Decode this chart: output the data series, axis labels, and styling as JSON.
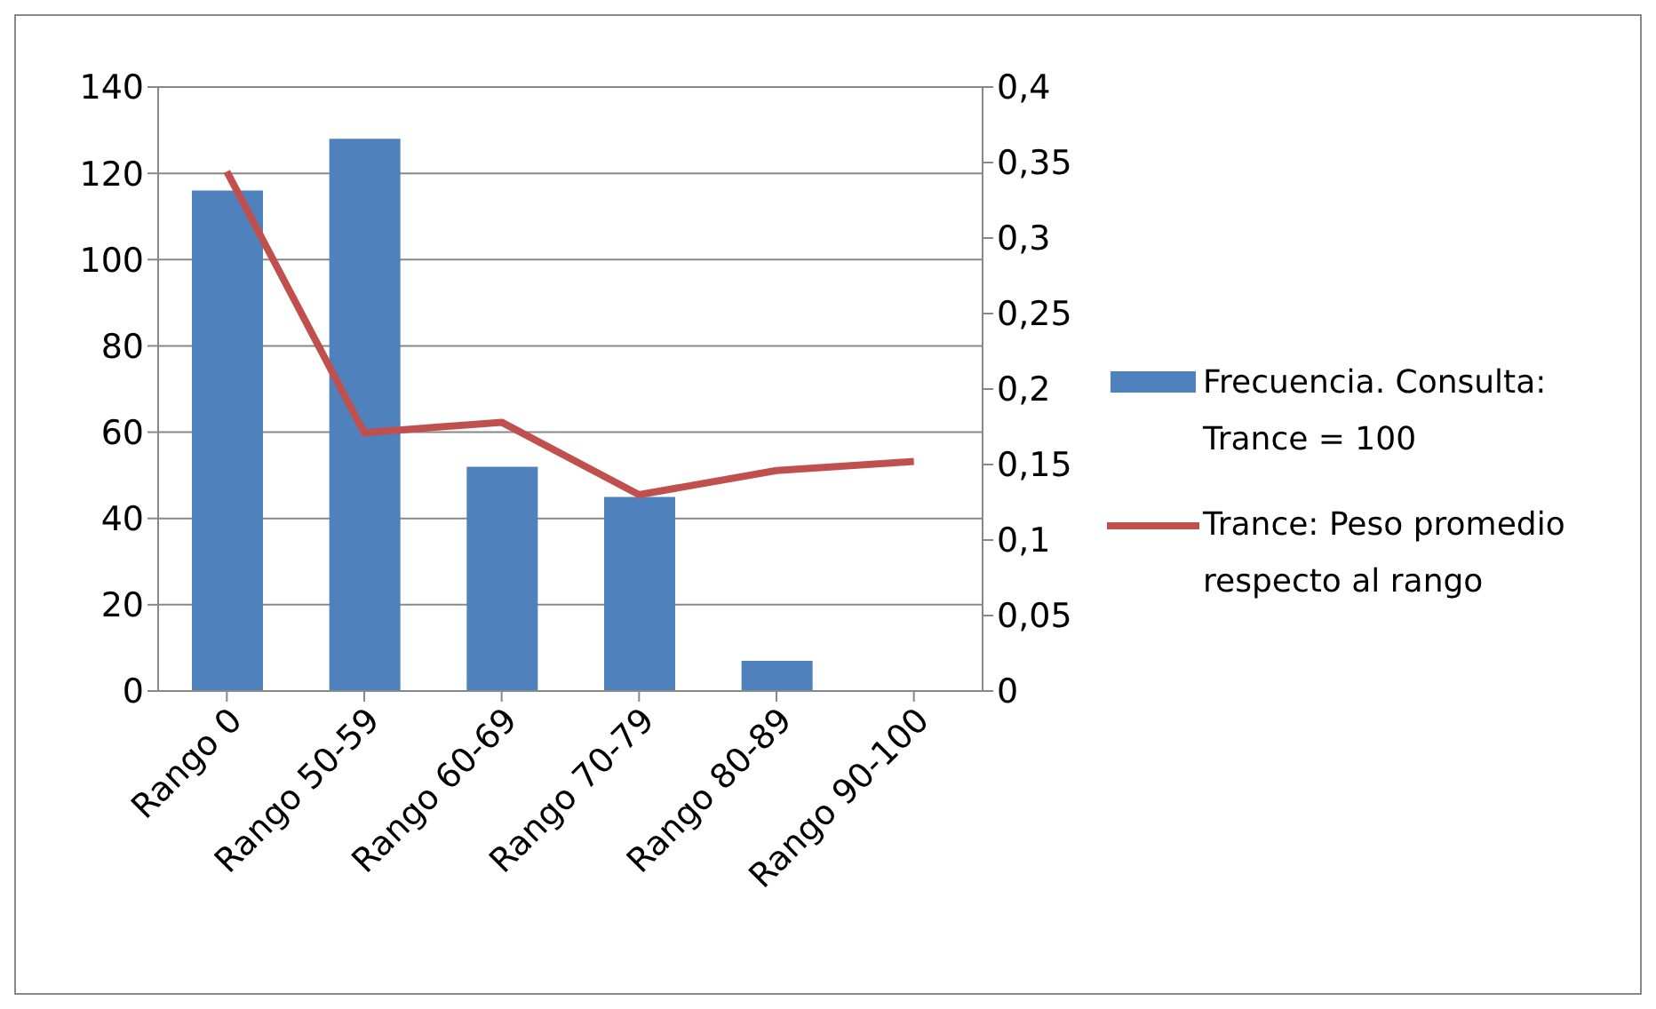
{
  "chart_data": {
    "type": "bar",
    "categories": [
      "Rango 0",
      "Rango 50-59",
      "Rango 60-69",
      "Rango 70-79",
      "Rango 80-89",
      "Rango 90-100"
    ],
    "series": [
      {
        "name": "Frecuencia. Consulta: Trance = 100",
        "color": "#4f81bd",
        "values": [
          116,
          128,
          52,
          45,
          7,
          null
        ]
      },
      {
        "name": "Trance: Peso promedio respecto al rango",
        "type": "line",
        "axis": "y2",
        "color": "#c0504d",
        "values": [
          0.344,
          0.171,
          0.178,
          0.13,
          0.146,
          0.152
        ]
      }
    ],
    "ylim": [
      0,
      140
    ],
    "yticks": [
      0,
      20,
      40,
      60,
      80,
      100,
      120,
      140
    ],
    "y2lim": [
      0,
      0.4
    ],
    "y2ticks": [
      0,
      {
        "value": 0.05,
        "label": "0,05"
      },
      {
        "value": 0.1,
        "label": "0,1"
      },
      {
        "value": 0.15,
        "label": "0,15"
      },
      {
        "value": 0.2,
        "label": "0,2"
      },
      {
        "value": 0.25,
        "label": "0,25"
      },
      {
        "value": 0.3,
        "label": "0,3"
      },
      {
        "value": 0.35,
        "label": "0,35"
      },
      {
        "value": 0.4,
        "label": "0,4"
      }
    ],
    "grid": "y",
    "legend": "right",
    "marker": "none",
    "line_style": "solid"
  }
}
